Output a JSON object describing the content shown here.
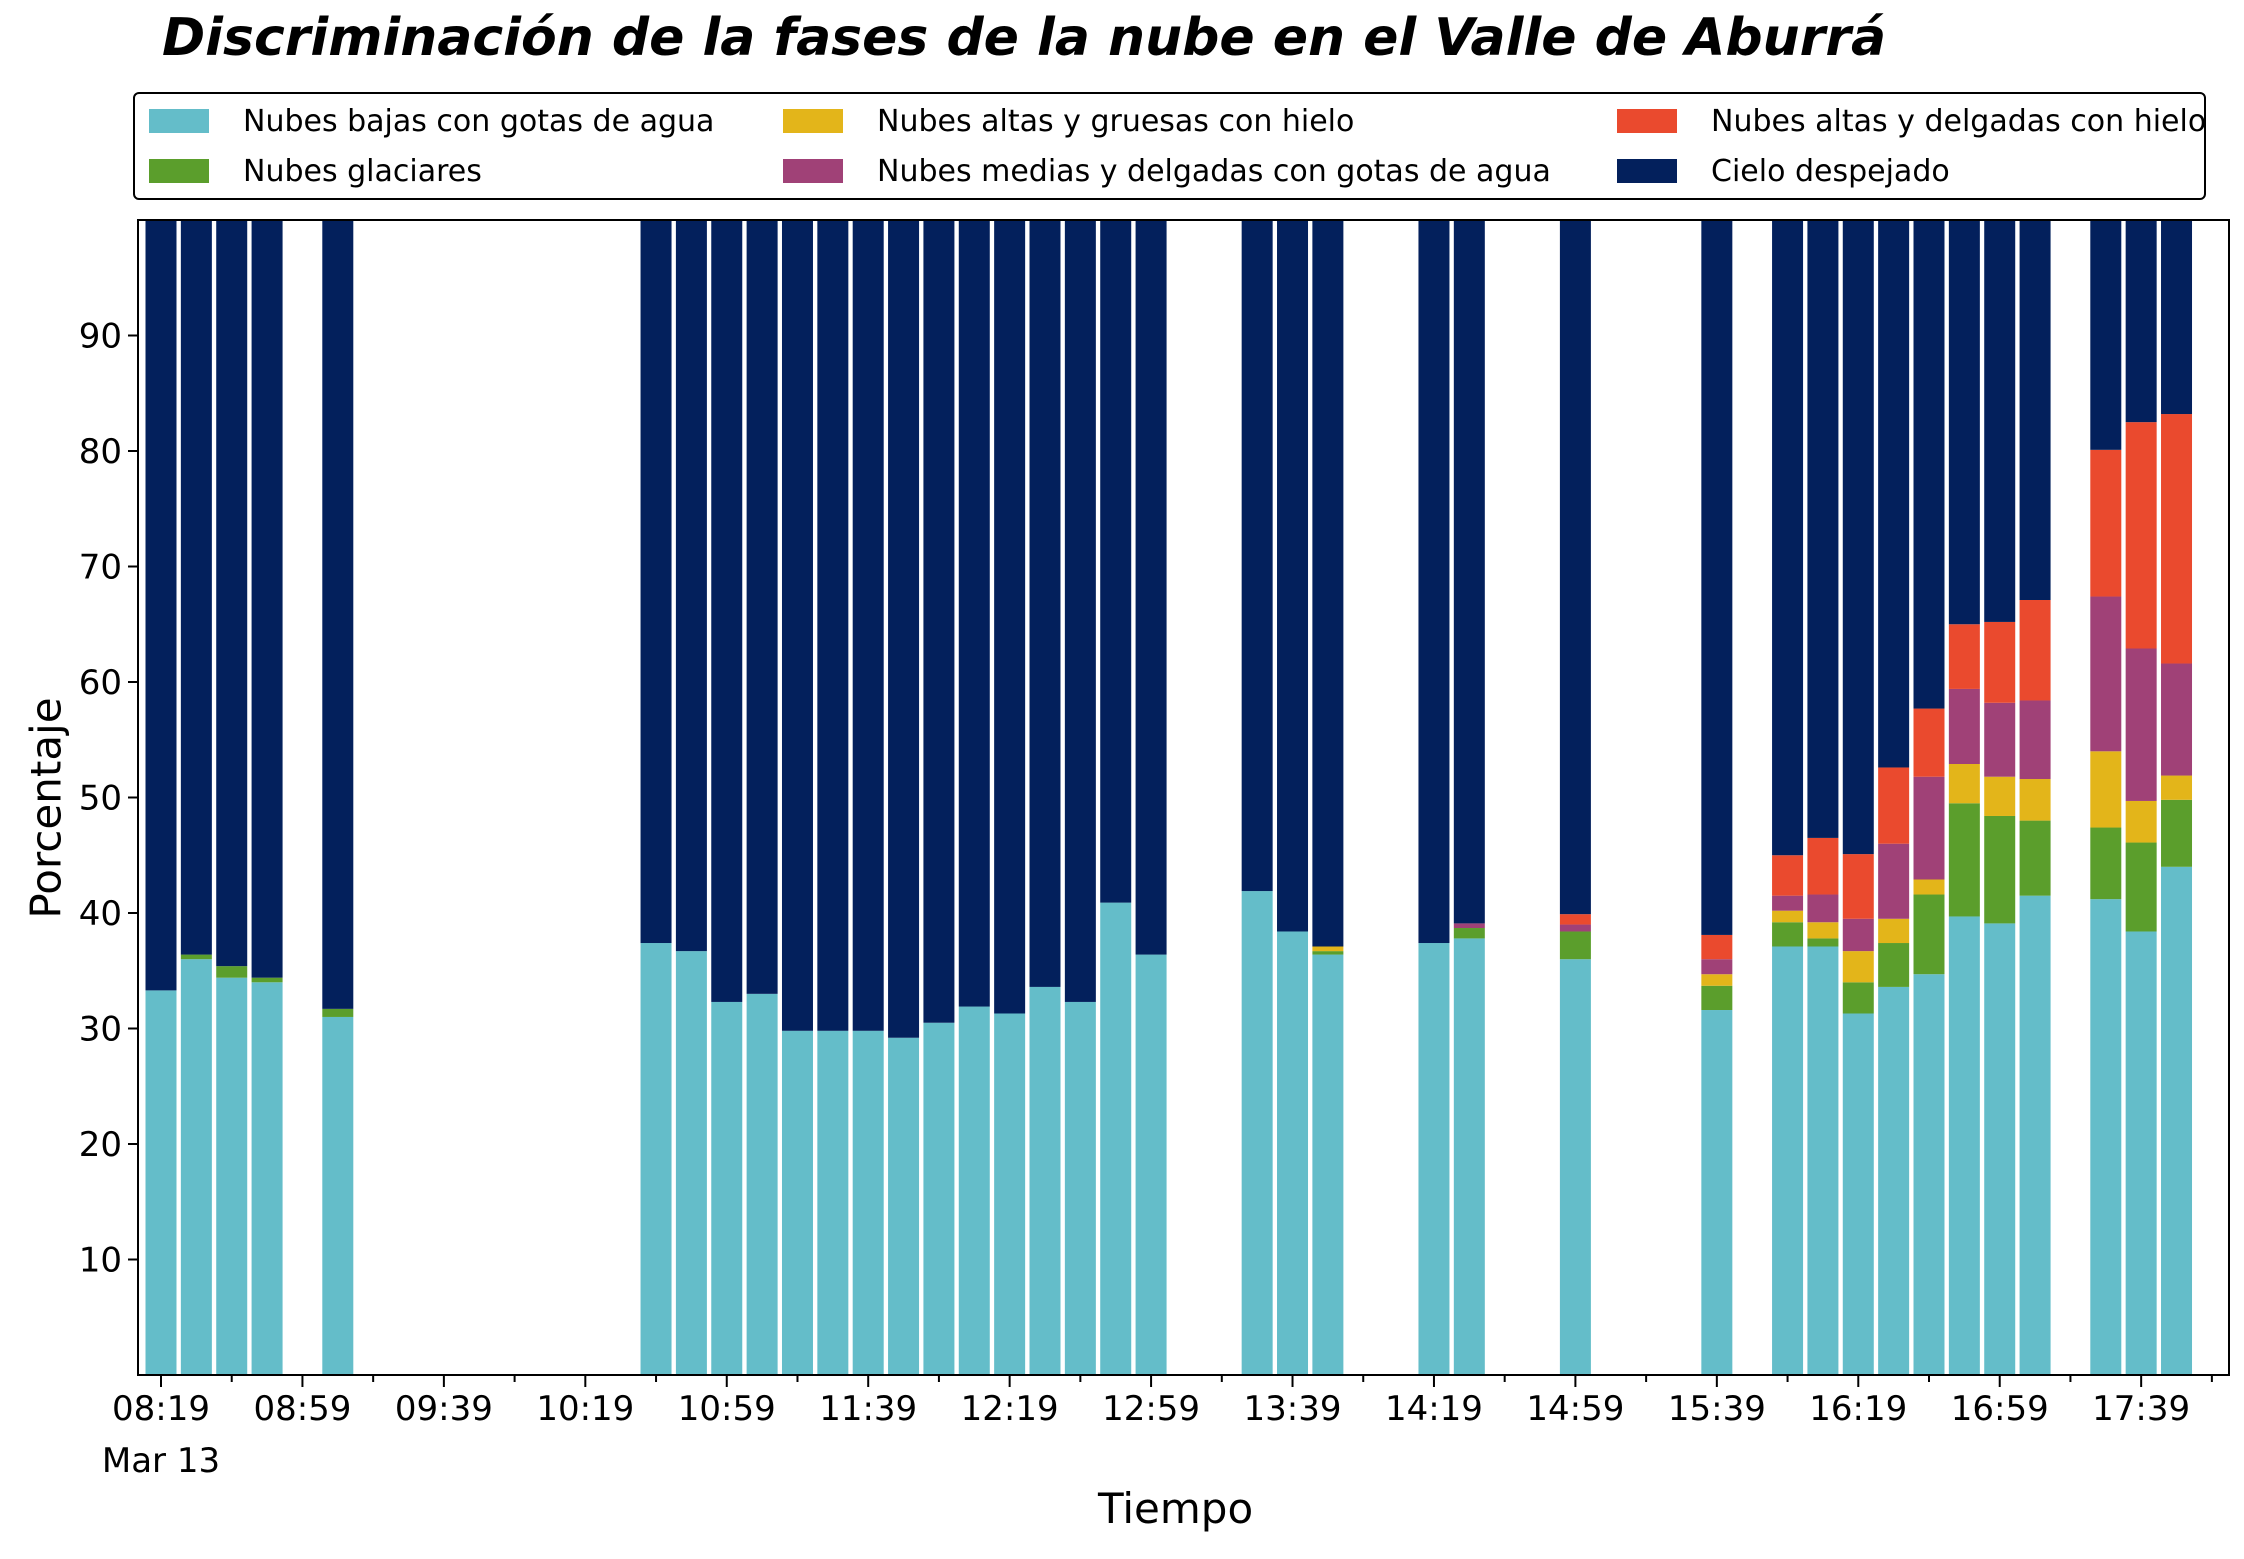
{
  "chart_data": {
    "type": "bar",
    "stacked": true,
    "title": "Discriminación de la fases de la nube en el Valle de Aburrá",
    "xlabel": "Tiempo",
    "ylabel": "Porcentaje",
    "ylim": [
      0,
      100
    ],
    "yticks": [
      10,
      20,
      30,
      40,
      50,
      60,
      70,
      80,
      90
    ],
    "grid": false,
    "legend_placement": "top",
    "date_label": "Mar 13",
    "xticks": [
      "08:19",
      "08:59",
      "09:39",
      "10:19",
      "10:59",
      "11:39",
      "12:19",
      "12:59",
      "13:39",
      "14:19",
      "14:59",
      "15:39",
      "16:19",
      "16:59",
      "17:39"
    ],
    "x_start": "08:19",
    "x_step_minutes": 10,
    "times": [
      "08:19",
      "08:29",
      "08:39",
      "08:49",
      "08:59",
      "09:09",
      "09:19",
      "09:29",
      "09:39",
      "09:49",
      "09:59",
      "10:09",
      "10:19",
      "10:29",
      "10:39",
      "10:49",
      "10:59",
      "11:09",
      "11:19",
      "11:29",
      "11:39",
      "11:49",
      "11:59",
      "12:09",
      "12:19",
      "12:29",
      "12:39",
      "12:49",
      "12:59",
      "13:09",
      "13:19",
      "13:29",
      "13:39",
      "13:49",
      "13:59",
      "14:09",
      "14:19",
      "14:29",
      "14:39",
      "14:49",
      "14:59",
      "15:09",
      "15:19",
      "15:29",
      "15:39",
      "15:49",
      "15:59",
      "16:09",
      "16:19",
      "16:29",
      "16:39",
      "16:49",
      "16:59",
      "17:09",
      "17:19",
      "17:29",
      "17:39",
      "17:49"
    ],
    "series": [
      {
        "name": "Nubes bajas con gotas de agua",
        "color": "#64bdc9",
        "values": [
          33.3,
          36.0,
          34.4,
          34.0,
          null,
          31.0,
          null,
          null,
          null,
          null,
          null,
          null,
          null,
          null,
          37.4,
          36.7,
          32.3,
          33.0,
          29.8,
          29.8,
          29.8,
          29.2,
          30.5,
          31.9,
          31.3,
          33.6,
          32.3,
          40.9,
          36.4,
          null,
          null,
          41.9,
          38.4,
          36.4,
          null,
          null,
          37.4,
          37.8,
          null,
          null,
          36.0,
          null,
          null,
          null,
          31.6,
          null,
          37.1,
          37.1,
          31.3,
          33.6,
          34.7,
          39.7,
          39.1,
          41.5,
          null,
          41.2,
          38.4,
          44.0
        ]
      },
      {
        "name": "Nubes glaciares",
        "color": "#5b9e2c",
        "values": [
          0,
          0.4,
          1.0,
          0.4,
          null,
          0.7,
          null,
          null,
          null,
          null,
          null,
          null,
          null,
          null,
          0,
          0,
          0,
          0,
          0,
          0,
          0,
          0,
          0,
          0,
          0,
          0,
          0,
          0,
          0,
          null,
          null,
          0,
          0,
          0.3,
          null,
          null,
          0,
          0.9,
          null,
          null,
          2.4,
          null,
          null,
          null,
          2.1,
          null,
          2.1,
          0.7,
          2.7,
          3.8,
          6.9,
          9.8,
          9.3,
          6.5,
          null,
          6.2,
          7.7,
          5.8
        ]
      },
      {
        "name": "Nubes altas y gruesas con hielo",
        "color": "#e3b51a",
        "values": [
          0,
          0,
          0,
          0,
          null,
          0,
          null,
          null,
          null,
          null,
          null,
          null,
          null,
          null,
          0,
          0,
          0,
          0,
          0,
          0,
          0,
          0,
          0,
          0,
          0,
          0,
          0,
          0,
          0,
          null,
          null,
          0,
          0,
          0.4,
          null,
          null,
          0,
          0,
          null,
          null,
          0,
          null,
          null,
          null,
          1.0,
          null,
          1.0,
          1.4,
          2.7,
          2.1,
          1.3,
          3.4,
          3.4,
          3.6,
          null,
          6.6,
          3.6,
          2.1
        ]
      },
      {
        "name": "Nubes medias y delgadas con gotas de agua",
        "color": "#a04177",
        "values": [
          0,
          0,
          0,
          0,
          null,
          0,
          null,
          null,
          null,
          null,
          null,
          null,
          null,
          null,
          0,
          0,
          0,
          0,
          0,
          0,
          0,
          0,
          0,
          0,
          0,
          0,
          0,
          0,
          0,
          null,
          null,
          0,
          0,
          0,
          null,
          null,
          0,
          0.4,
          null,
          null,
          0.6,
          null,
          null,
          null,
          1.3,
          null,
          1.3,
          2.4,
          2.8,
          6.5,
          8.9,
          6.5,
          6.4,
          6.8,
          null,
          13.4,
          13.2,
          9.7
        ]
      },
      {
        "name": "Nubes altas y delgadas con hielo",
        "color": "#ea4a2e",
        "values": [
          0,
          0,
          0,
          0,
          null,
          0,
          null,
          null,
          null,
          null,
          null,
          null,
          null,
          null,
          0,
          0,
          0,
          0,
          0,
          0,
          0,
          0,
          0,
          0,
          0,
          0,
          0,
          0,
          0,
          null,
          null,
          0,
          0,
          0,
          null,
          null,
          0,
          0,
          null,
          null,
          0.9,
          null,
          null,
          null,
          2.1,
          null,
          3.5,
          4.9,
          5.6,
          6.6,
          5.9,
          5.6,
          7.0,
          8.7,
          null,
          12.7,
          19.6,
          21.6
        ]
      },
      {
        "name": "Cielo despejado",
        "color": "#03205c",
        "values": [
          66.7,
          63.6,
          64.6,
          65.6,
          null,
          68.3,
          null,
          null,
          null,
          null,
          null,
          null,
          null,
          null,
          62.6,
          63.3,
          67.7,
          67.0,
          70.2,
          70.2,
          70.2,
          70.8,
          69.5,
          68.1,
          68.7,
          66.4,
          67.7,
          59.1,
          63.6,
          null,
          null,
          58.1,
          61.6,
          62.9,
          null,
          null,
          62.6,
          60.9,
          null,
          null,
          60.1,
          null,
          null,
          null,
          61.9,
          null,
          55.0,
          53.5,
          54.9,
          47.4,
          42.3,
          35.0,
          34.8,
          32.9,
          null,
          19.9,
          17.5,
          16.8
        ]
      }
    ]
  }
}
